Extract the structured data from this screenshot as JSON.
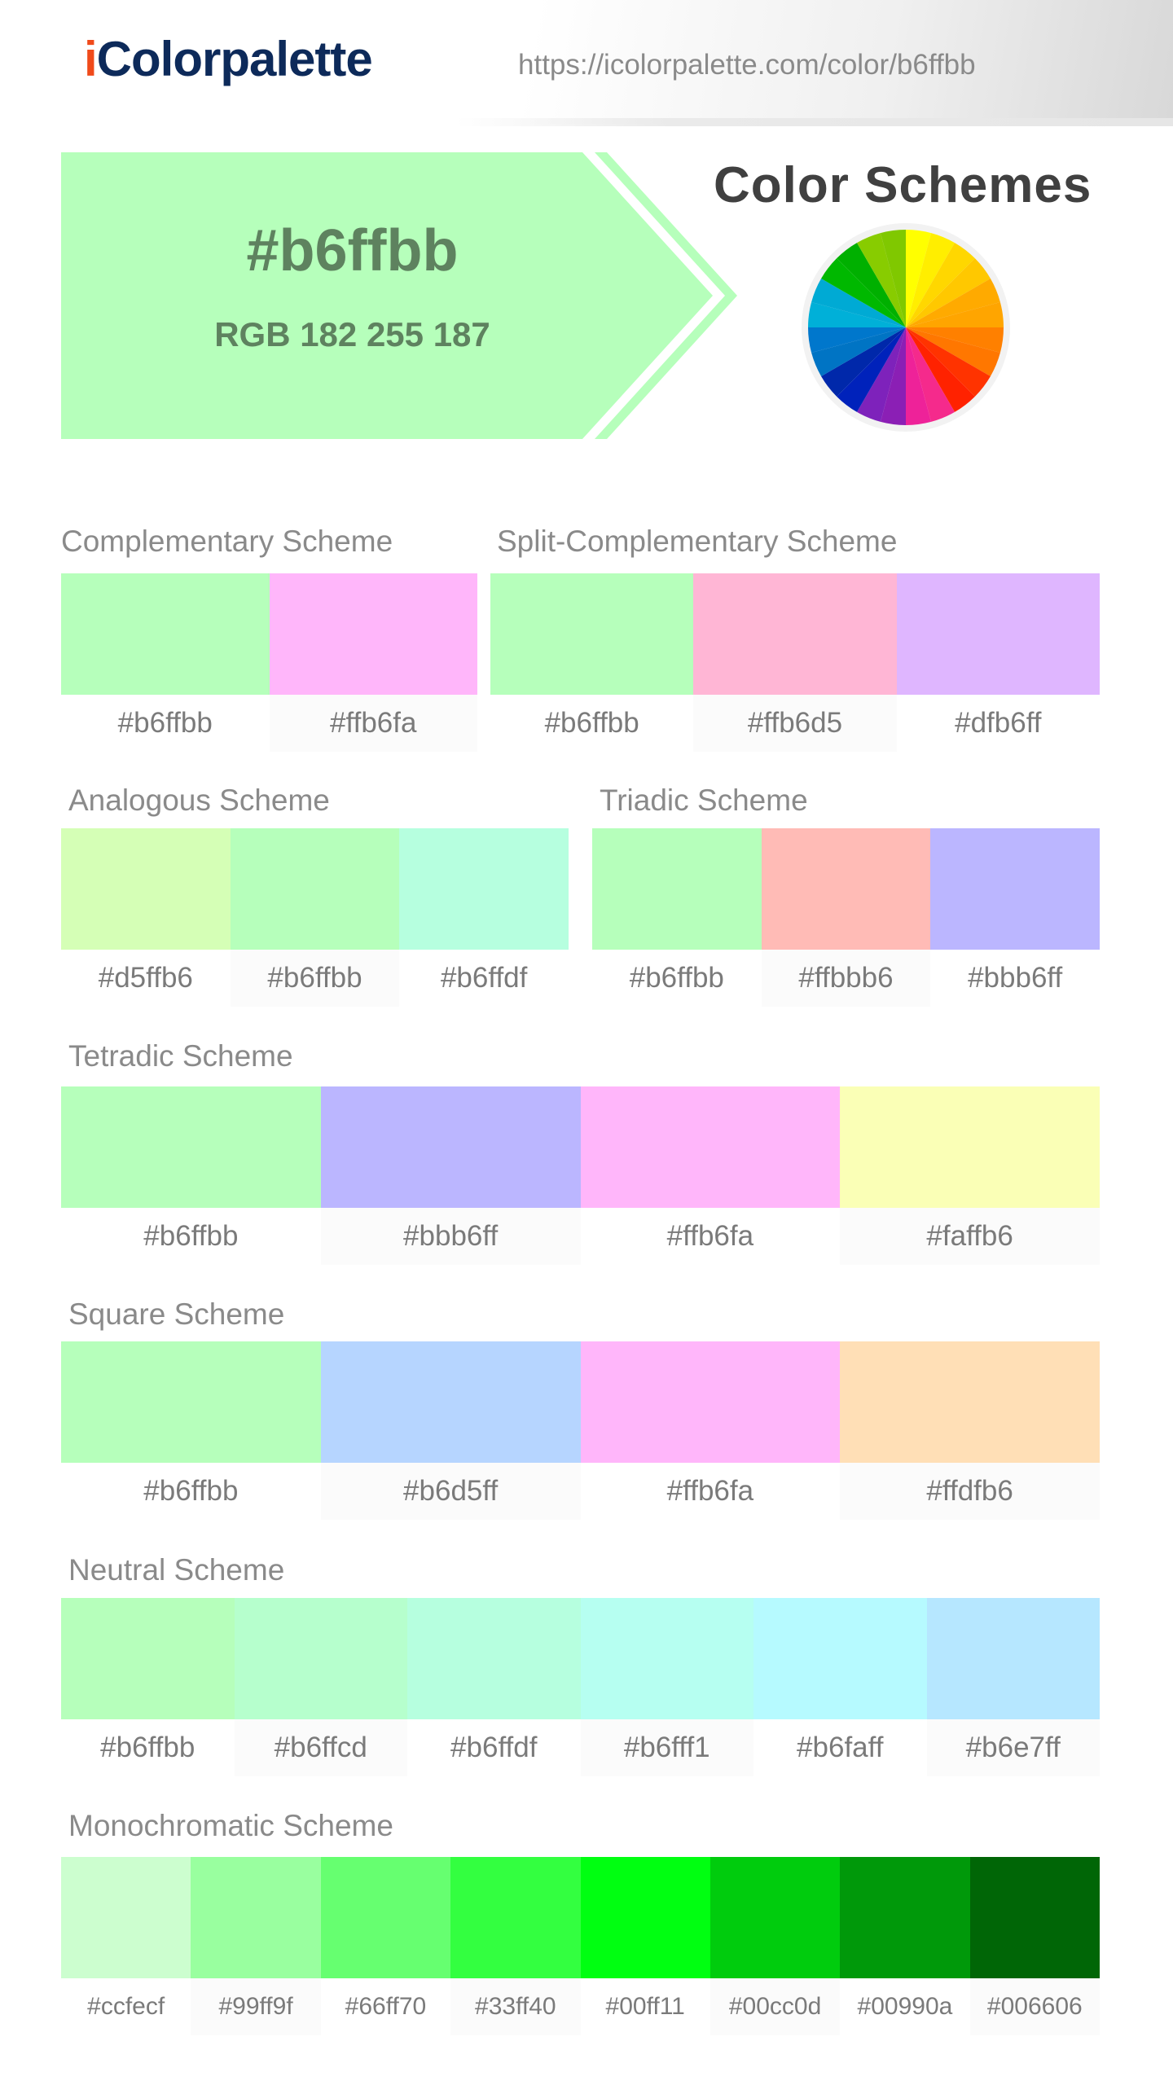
{
  "header": {
    "logo_i": "i",
    "logo_rest": "Colorpalette",
    "url": "https://icolorpalette.com/color/b6ffbb"
  },
  "hero": {
    "hex": "#b6ffbb",
    "rgb": "RGB 182 255 187",
    "color": "#b6ffbb",
    "text_color": "#5e825f"
  },
  "schemes_title": "Color Schemes",
  "wheel_icon": "color-wheel-icon",
  "schemes": [
    {
      "title": "Complementary Scheme",
      "colors": [
        "#b6ffbb",
        "#ffb6fa"
      ]
    },
    {
      "title": "Split-Complementary Scheme",
      "colors": [
        "#b6ffbb",
        "#ffb6d5",
        "#dfb6ff"
      ]
    },
    {
      "title": "Analogous Scheme",
      "colors": [
        "#d5ffb6",
        "#b6ffbb",
        "#b6ffdf"
      ]
    },
    {
      "title": "Triadic Scheme",
      "colors": [
        "#b6ffbb",
        "#ffbbb6",
        "#bbb6ff"
      ]
    },
    {
      "title": "Tetradic Scheme",
      "colors": [
        "#b6ffbb",
        "#bbb6ff",
        "#ffb6fa",
        "#faffb6"
      ]
    },
    {
      "title": "Square Scheme",
      "colors": [
        "#b6ffbb",
        "#b6d5ff",
        "#ffb6fa",
        "#ffdfb6"
      ]
    },
    {
      "title": "Neutral Scheme",
      "colors": [
        "#b6ffbb",
        "#b6ffcd",
        "#b6ffdf",
        "#b6fff1",
        "#b6faff",
        "#b6e7ff"
      ]
    },
    {
      "title": "Monochromatic Scheme",
      "colors": [
        "#ccfecf",
        "#99ff9f",
        "#66ff70",
        "#33ff40",
        "#00ff11",
        "#00cc0d",
        "#00990a",
        "#006606"
      ]
    }
  ]
}
